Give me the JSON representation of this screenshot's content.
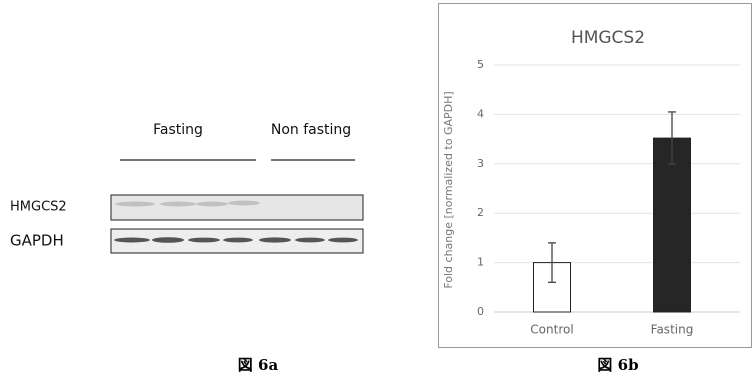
{
  "blot": {
    "group_labels": [
      "Fasting",
      "Non fasting"
    ],
    "row_labels": [
      "HMGCS2",
      "GAPDH"
    ]
  },
  "captions": [
    "図 6a",
    "図 6b"
  ],
  "chart_data": {
    "type": "bar",
    "title": "HMGCS2",
    "y_label": "Fold change [normalized to GAPDH]",
    "categories": [
      "Control",
      "Fasting"
    ],
    "values": [
      1.0,
      3.52
    ],
    "errors": [
      0.4,
      0.53
    ],
    "colors": [
      "#ffffff",
      "#262626"
    ],
    "ylim": [
      0,
      5
    ],
    "yticks": [
      0,
      1,
      2,
      3,
      4,
      5
    ],
    "grid": true
  }
}
